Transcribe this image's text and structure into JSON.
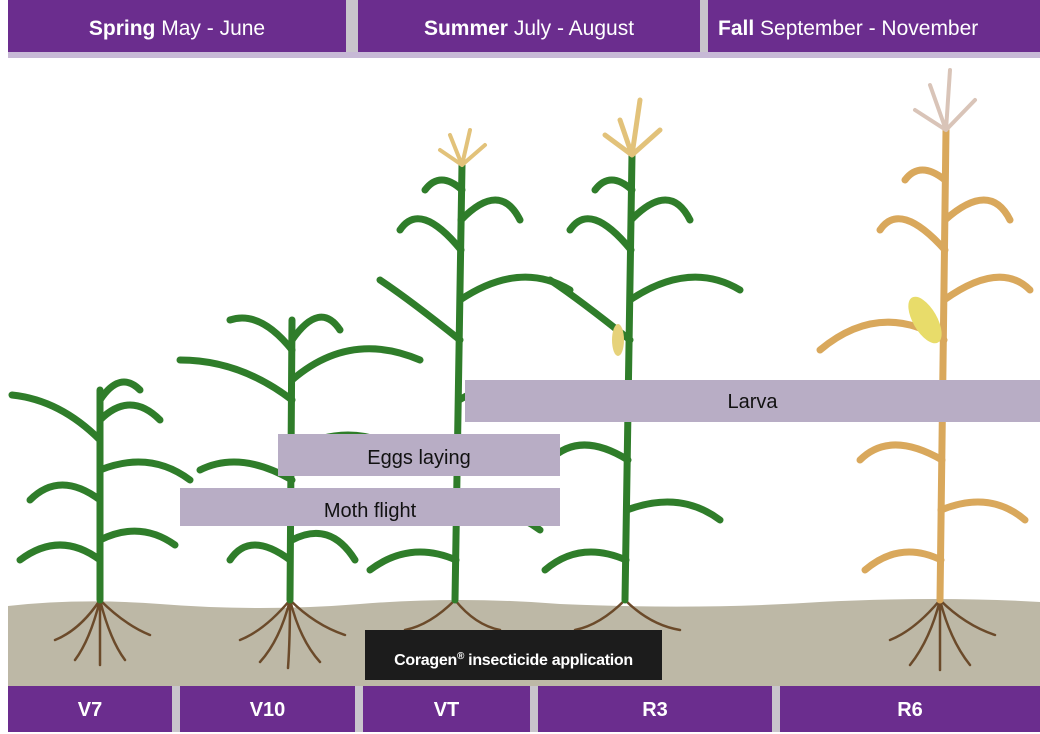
{
  "header": {
    "seasons": [
      {
        "name": "Spring",
        "months": "May - June"
      },
      {
        "name": "Summer",
        "months": "July - August"
      },
      {
        "name": "Fall",
        "months": "September - November"
      }
    ]
  },
  "phases": [
    {
      "label": "Larva"
    },
    {
      "label": "Eggs laying"
    },
    {
      "label": "Moth flight"
    }
  ],
  "application": {
    "brand": "Coragen",
    "mark": "®",
    "text": "insecticide application"
  },
  "stages": [
    "V7",
    "V10",
    "VT",
    "R3",
    "R6"
  ]
}
